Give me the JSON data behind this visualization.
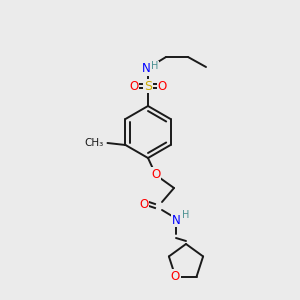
{
  "bg_color": "#ebebeb",
  "bond_color": "#1a1a1a",
  "atom_colors": {
    "N": "#0000ff",
    "O": "#ff0000",
    "S": "#ccaa00",
    "H": "#4a9090",
    "C": "#1a1a1a"
  },
  "font_size_atom": 8.5,
  "font_size_small": 7.0,
  "fig_size": [
    3.0,
    3.0
  ],
  "dpi": 100,
  "lw": 1.4
}
